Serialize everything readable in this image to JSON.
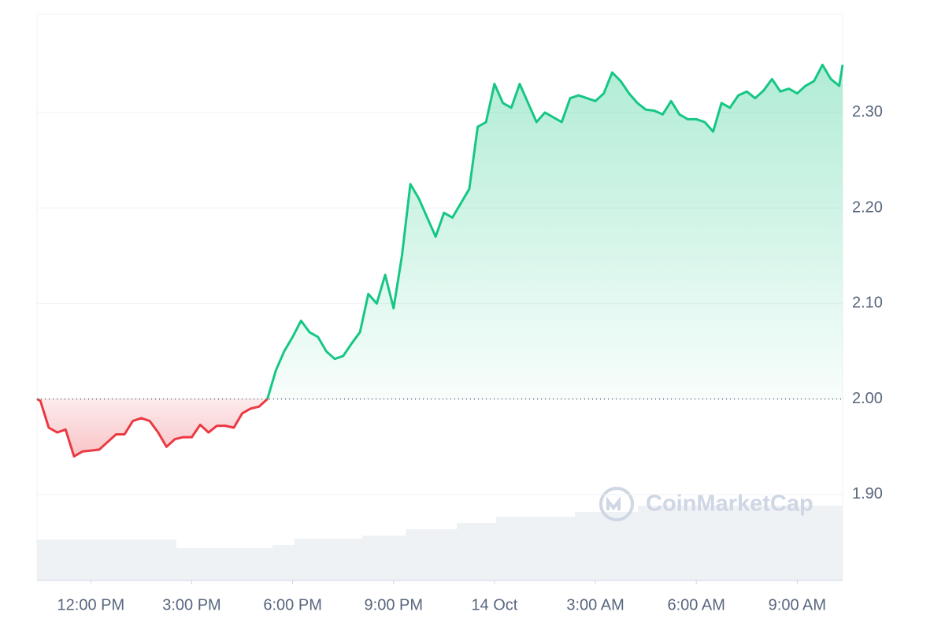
{
  "chart_data": {
    "type": "line",
    "watermark": "CoinMarketCap",
    "x": [
      10.4,
      10.5,
      10.75,
      11,
      11.25,
      11.5,
      11.75,
      12,
      12.25,
      12.5,
      12.75,
      13,
      13.25,
      13.5,
      13.75,
      14,
      14.25,
      14.5,
      14.75,
      15,
      15.25,
      15.5,
      15.75,
      16,
      16.25,
      16.5,
      16.75,
      17,
      17.25,
      17.5,
      17.75,
      18,
      18.25,
      18.5,
      18.75,
      19,
      19.25,
      19.5,
      19.75,
      20,
      20.25,
      20.5,
      20.75,
      21,
      21.25,
      21.5,
      21.75,
      22,
      22.25,
      22.5,
      22.75,
      23,
      23.25,
      23.5,
      23.75,
      24,
      24.25,
      24.5,
      24.75,
      25,
      25.25,
      25.5,
      25.75,
      26,
      26.25,
      26.5,
      26.75,
      27,
      27.25,
      27.5,
      27.75,
      28,
      28.25,
      28.5,
      28.75,
      29,
      29.25,
      29.5,
      29.75,
      30,
      30.25,
      30.5,
      30.75,
      31,
      31.25,
      31.5,
      31.75,
      32,
      32.25,
      32.5,
      32.75,
      33,
      33.25,
      33.5,
      33.75,
      34,
      34.25,
      34.35
    ],
    "series": [
      {
        "color": "#16c784",
        "color_below": "#ea3943",
        "values": [
          2.0,
          1.998,
          1.97,
          1.965,
          1.968,
          1.94,
          1.945,
          1.946,
          1.947,
          1.955,
          1.963,
          1.963,
          1.977,
          1.98,
          1.977,
          1.965,
          1.95,
          1.958,
          1.96,
          1.96,
          1.973,
          1.965,
          1.972,
          1.972,
          1.97,
          1.985,
          1.99,
          1.992,
          2.0,
          2.03,
          2.05,
          2.065,
          2.082,
          2.07,
          2.065,
          2.05,
          2.042,
          2.045,
          2.058,
          2.07,
          2.11,
          2.1,
          2.13,
          2.095,
          2.15,
          2.225,
          2.21,
          2.19,
          2.17,
          2.195,
          2.19,
          2.205,
          2.22,
          2.285,
          2.29,
          2.33,
          2.31,
          2.305,
          2.33,
          2.31,
          2.29,
          2.3,
          2.295,
          2.29,
          2.315,
          2.318,
          2.315,
          2.312,
          2.32,
          2.342,
          2.333,
          2.32,
          2.31,
          2.303,
          2.302,
          2.298,
          2.312,
          2.298,
          2.293,
          2.293,
          2.29,
          2.28,
          2.31,
          2.305,
          2.318,
          2.322,
          2.315,
          2.323,
          2.335,
          2.322,
          2.325,
          2.32,
          2.328,
          2.333,
          2.35,
          2.335,
          2.328,
          2.35
        ]
      }
    ],
    "baseline": 2.0,
    "xlim": [
      10.4,
      34.35
    ],
    "xticks": [
      {
        "value": 12,
        "label": "12:00 PM"
      },
      {
        "value": 15,
        "label": "3:00 PM"
      },
      {
        "value": 18,
        "label": "6:00 PM"
      },
      {
        "value": 21,
        "label": "9:00 PM"
      },
      {
        "value": 24,
        "label": "14 Oct"
      },
      {
        "value": 27,
        "label": "3:00 AM"
      },
      {
        "value": 30,
        "label": "6:00 AM"
      },
      {
        "value": 33,
        "label": "9:00 AM"
      }
    ],
    "ylim": [
      1.81,
      2.403
    ],
    "yticks": [
      {
        "value": 1.9,
        "label": "1.90"
      },
      {
        "value": 2.0,
        "label": "2.00"
      },
      {
        "value": 2.1,
        "label": "2.10"
      },
      {
        "value": 2.2,
        "label": "2.20"
      },
      {
        "value": 2.3,
        "label": "2.30"
      }
    ],
    "grid": true
  }
}
